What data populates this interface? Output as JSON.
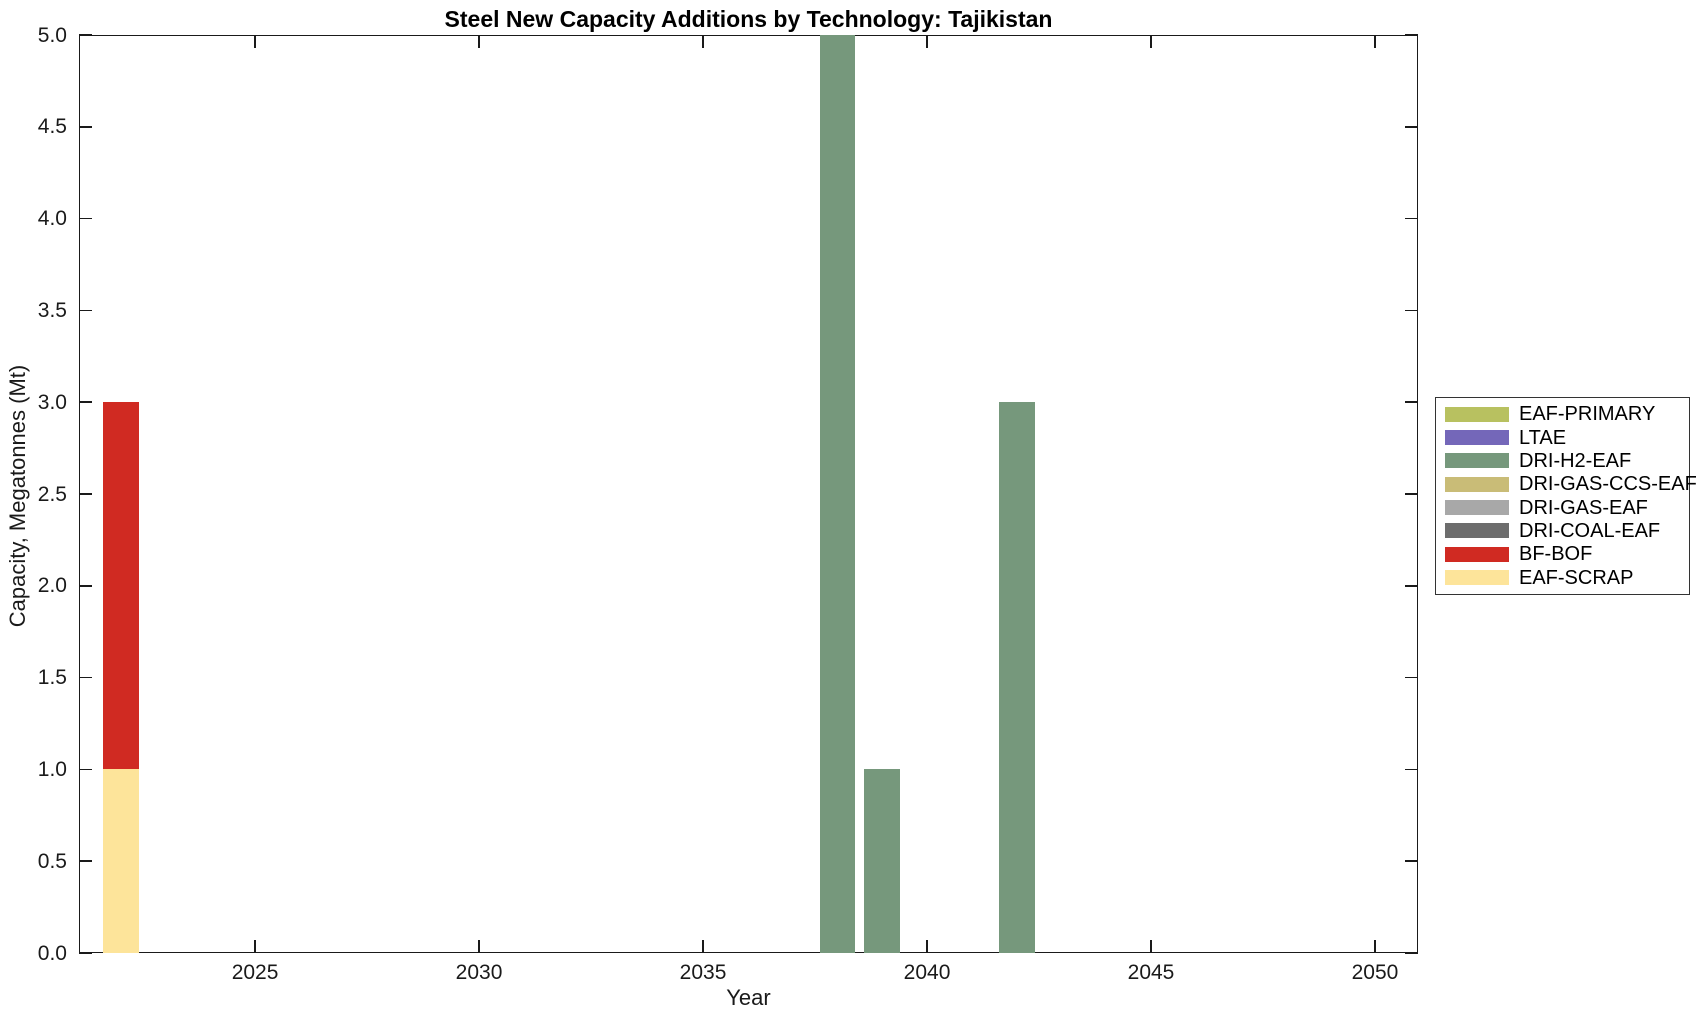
{
  "figure": {
    "background": "#ffffff",
    "axis_color": "#1a1a1a"
  },
  "chart_data": {
    "type": "bar",
    "stacked": true,
    "title": "Steel New Capacity Additions by Technology: Tajikistan",
    "xlabel": "Year",
    "ylabel": "Capacity, Megatonnes (Mt)",
    "xlim": [
      2021.07,
      2050.96
    ],
    "ylim": [
      0,
      5
    ],
    "xticks": [
      2025,
      2030,
      2035,
      2040,
      2045,
      2050
    ],
    "yticks": [
      0,
      0.5,
      1,
      1.5,
      2,
      2.5,
      3,
      3.5,
      4,
      4.5,
      5
    ],
    "ytick_decimals": 1,
    "grid": false,
    "legend_position": "right-outside",
    "bar_width_years": 0.8,
    "x": [
      2022,
      2038,
      2039,
      2042
    ],
    "series": [
      {
        "name": "EAF-PRIMARY",
        "color": "#b8c160",
        "values": [
          0,
          0,
          0,
          0
        ]
      },
      {
        "name": "LTAE",
        "color": "#7467b9",
        "values": [
          0,
          0,
          0,
          0
        ]
      },
      {
        "name": "DRI-H2-EAF",
        "color": "#76987c",
        "values": [
          0,
          5,
          1,
          3
        ]
      },
      {
        "name": "DRI-GAS-CCS-EAF",
        "color": "#c9bc77",
        "values": [
          0,
          0,
          0,
          0
        ]
      },
      {
        "name": "DRI-GAS-EAF",
        "color": "#a8a8a8",
        "values": [
          0,
          0,
          0,
          0
        ]
      },
      {
        "name": "DRI-COAL-EAF",
        "color": "#6d6d6d",
        "values": [
          0,
          0,
          0,
          0
        ]
      },
      {
        "name": "BF-BOF",
        "color": "#d02a22",
        "values": [
          2,
          0,
          0,
          0
        ]
      },
      {
        "name": "EAF-SCRAP",
        "color": "#fde49a",
        "values": [
          1,
          0,
          0,
          0
        ]
      }
    ],
    "stack_order": "bottom-to-top-is-reverse-of-legend"
  }
}
